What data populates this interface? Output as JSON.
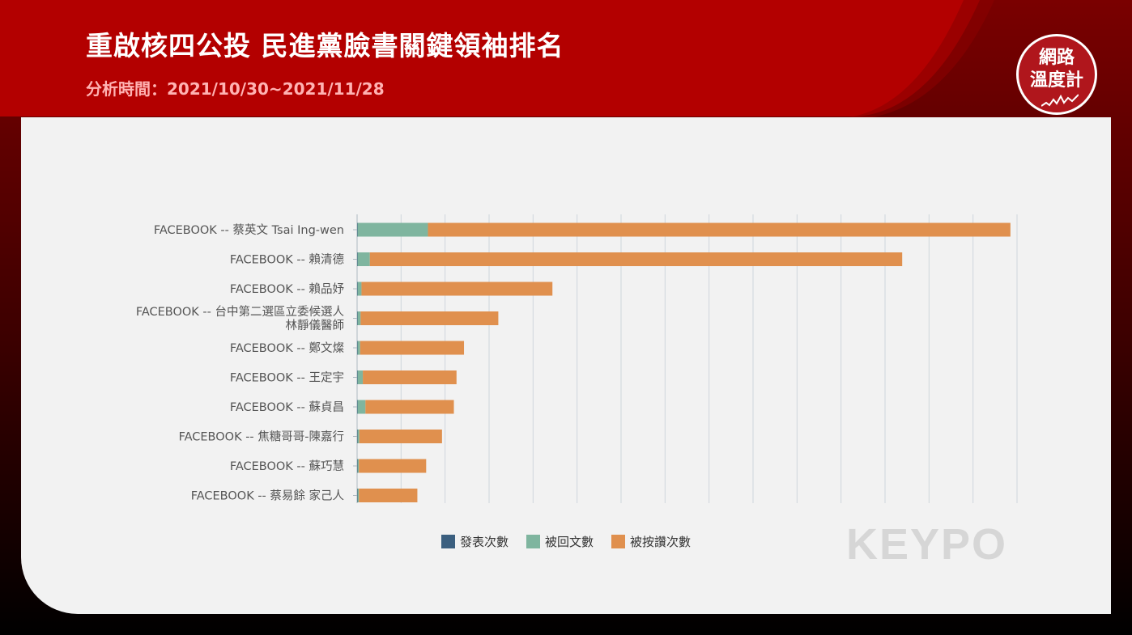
{
  "header": {
    "title": "重啟核四公投 民進黨臉書關鍵領袖排名",
    "subtitle": "分析時間：2021/10/30~2021/11/28"
  },
  "badge": {
    "line1": "網路",
    "line2": "溫度計"
  },
  "watermark": {
    "text": "KEYPO"
  },
  "colors": {
    "series_posts": "#3b5f7f",
    "series_replies": "#7fb59f",
    "series_likes": "#e0904e",
    "brand_red": "#b0161c"
  },
  "chart_data": {
    "type": "bar",
    "orientation": "horizontal",
    "stacked": true,
    "categories": [
      "FACEBOOK -- 蔡英文 Tsai Ing-wen",
      "FACEBOOK -- 賴清德",
      "FACEBOOK -- 賴品妤",
      "FACEBOOK -- 台中第二選區立委候選人\n林靜儀醫師",
      "FACEBOOK -- 鄭文燦",
      "FACEBOOK -- 王定宇",
      "FACEBOOK -- 蘇貞昌",
      "FACEBOOK -- 焦糖哥哥-陳嘉行",
      "FACEBOOK -- 蘇巧慧",
      "FACEBOOK -- 蔡易餘 家己人"
    ],
    "series": [
      {
        "name": "發表次數",
        "values": [
          1,
          1,
          1,
          1,
          1,
          1,
          1,
          1,
          1,
          1
        ]
      },
      {
        "name": "被回文數",
        "values": [
          160,
          28,
          9,
          7,
          6,
          12,
          18,
          4,
          3,
          3
        ]
      },
      {
        "name": "被按讚次數",
        "values": [
          1324,
          1210,
          434,
          313,
          236,
          213,
          201,
          188,
          153,
          133
        ]
      }
    ],
    "xlim": [
      0,
      1500
    ],
    "grid": true,
    "legend_position": "bottom"
  }
}
